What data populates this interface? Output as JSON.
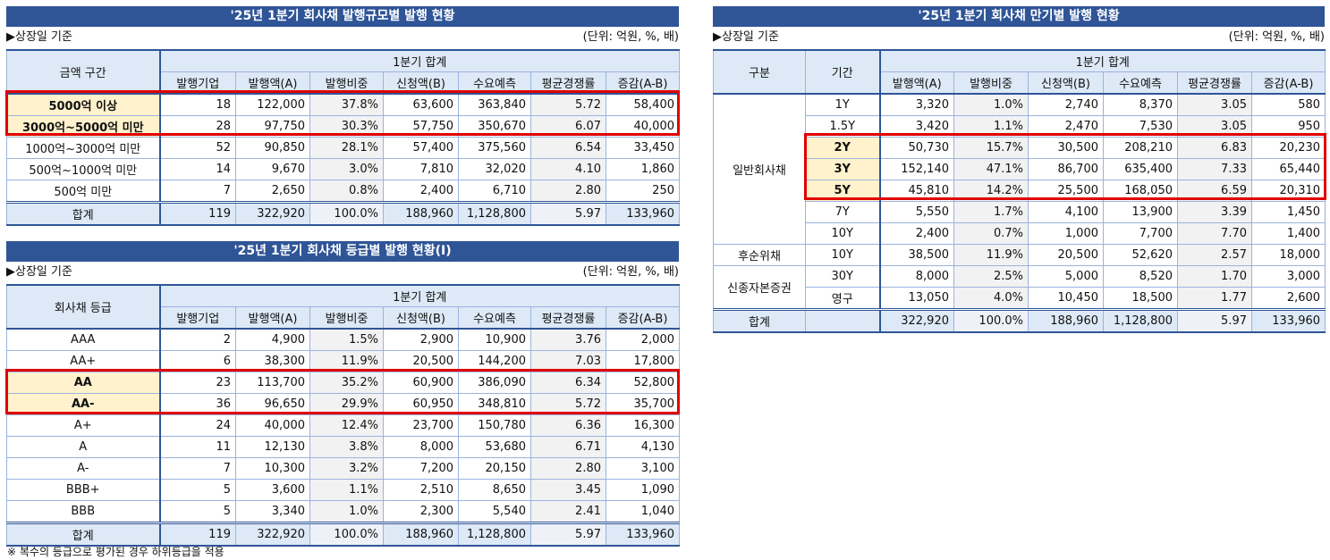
{
  "common": {
    "basis": "▶상장일 기준",
    "unit": "(단위: 억원, %, 배)",
    "group": "1분기 합계",
    "cols": [
      "발행기업",
      "발행액(A)",
      "발행비중",
      "신청액(B)",
      "수요예측",
      "평균경쟁률",
      "증감(A-B)"
    ]
  },
  "size_table": {
    "title": "'25년 1분기 회사채 발행규모별 발행 현황",
    "label_header": "금액 구간",
    "rows": [
      [
        "5000억 이상",
        "18",
        "122,000",
        "37.8%",
        "63,600",
        "363,840",
        "5.72",
        "58,400"
      ],
      [
        "3000억~5000억 미만",
        "28",
        "97,750",
        "30.3%",
        "57,750",
        "350,670",
        "6.07",
        "40,000"
      ],
      [
        "1000억~3000억 미만",
        "52",
        "90,850",
        "28.1%",
        "57,400",
        "375,560",
        "6.54",
        "33,450"
      ],
      [
        "500억~1000억 미만",
        "14",
        "9,670",
        "3.0%",
        "7,810",
        "32,020",
        "4.10",
        "1,860"
      ],
      [
        "500억 미만",
        "7",
        "2,650",
        "0.8%",
        "2,400",
        "6,710",
        "2.80",
        "250"
      ]
    ],
    "total": [
      "합계",
      "119",
      "322,920",
      "100.0%",
      "188,960",
      "1,128,800",
      "5.97",
      "133,960"
    ],
    "highlighted": [
      0,
      1
    ]
  },
  "grade_table": {
    "title": "'25년 1분기 회사채 등급별 발행 현황(I)",
    "label_header": "회사채 등급",
    "rows": [
      [
        "AAA",
        "2",
        "4,900",
        "1.5%",
        "2,900",
        "10,900",
        "3.76",
        "2,000"
      ],
      [
        "AA+",
        "6",
        "38,300",
        "11.9%",
        "20,500",
        "144,200",
        "7.03",
        "17,800"
      ],
      [
        "AA",
        "23",
        "113,700",
        "35.2%",
        "60,900",
        "386,090",
        "6.34",
        "52,800"
      ],
      [
        "AA-",
        "36",
        "96,650",
        "29.9%",
        "60,950",
        "348,810",
        "5.72",
        "35,700"
      ],
      [
        "A+",
        "24",
        "40,000",
        "12.4%",
        "23,700",
        "150,780",
        "6.36",
        "16,300"
      ],
      [
        "A",
        "11",
        "12,130",
        "3.8%",
        "8,000",
        "53,680",
        "6.71",
        "4,130"
      ],
      [
        "A-",
        "7",
        "10,300",
        "3.2%",
        "7,200",
        "20,150",
        "2.80",
        "3,100"
      ],
      [
        "BBB+",
        "5",
        "3,600",
        "1.1%",
        "2,510",
        "8,650",
        "3.45",
        "1,090"
      ],
      [
        "BBB",
        "5",
        "3,340",
        "1.0%",
        "2,300",
        "5,540",
        "2.41",
        "1,040"
      ]
    ],
    "total": [
      "합계",
      "119",
      "322,920",
      "100.0%",
      "188,960",
      "1,128,800",
      "5.97",
      "133,960"
    ],
    "highlighted": [
      2,
      3
    ],
    "footnote": "※ 복수의 등급으로 평가된 경우 하위등급을 적용"
  },
  "maturity_table": {
    "title": "'25년 1분기 회사채 만기별 발행 현황",
    "cat_header": "구분",
    "term_header": "기간",
    "cols": [
      "발행액(A)",
      "발행비중",
      "신청액(B)",
      "수요예측",
      "평균경쟁률",
      "증감(A-B)"
    ],
    "groups": [
      {
        "name": "일반회사채",
        "rows": [
          [
            "1Y",
            "3,320",
            "1.0%",
            "2,740",
            "8,370",
            "3.05",
            "580"
          ],
          [
            "1.5Y",
            "3,420",
            "1.1%",
            "2,470",
            "7,530",
            "3.05",
            "950"
          ],
          [
            "2Y",
            "50,730",
            "15.7%",
            "30,500",
            "208,210",
            "6.83",
            "20,230"
          ],
          [
            "3Y",
            "152,140",
            "47.1%",
            "86,700",
            "635,400",
            "7.33",
            "65,440"
          ],
          [
            "5Y",
            "45,810",
            "14.2%",
            "25,500",
            "168,050",
            "6.59",
            "20,310"
          ],
          [
            "7Y",
            "5,550",
            "1.7%",
            "4,100",
            "13,900",
            "3.39",
            "1,450"
          ],
          [
            "10Y",
            "2,400",
            "0.7%",
            "1,000",
            "7,700",
            "7.70",
            "1,400"
          ]
        ]
      },
      {
        "name": "후순위채",
        "rows": [
          [
            "10Y",
            "38,500",
            "11.9%",
            "20,500",
            "52,620",
            "2.57",
            "18,000"
          ]
        ]
      },
      {
        "name": "신종자본증권",
        "rows": [
          [
            "30Y",
            "8,000",
            "2.5%",
            "5,000",
            "8,520",
            "1.70",
            "3,000"
          ],
          [
            "영구",
            "13,050",
            "4.0%",
            "10,450",
            "18,500",
            "1.77",
            "2,600"
          ]
        ]
      }
    ],
    "total": [
      "합계",
      "",
      "322,920",
      "100.0%",
      "188,960",
      "1,128,800",
      "5.97",
      "133,960"
    ],
    "highlighted_terms": [
      "2Y",
      "3Y",
      "5Y"
    ]
  },
  "colors": {
    "title_bg": "#2f5597",
    "header_bg": "#dde9f6",
    "highlight": "#fff2cc",
    "red_box": "#e00000"
  }
}
